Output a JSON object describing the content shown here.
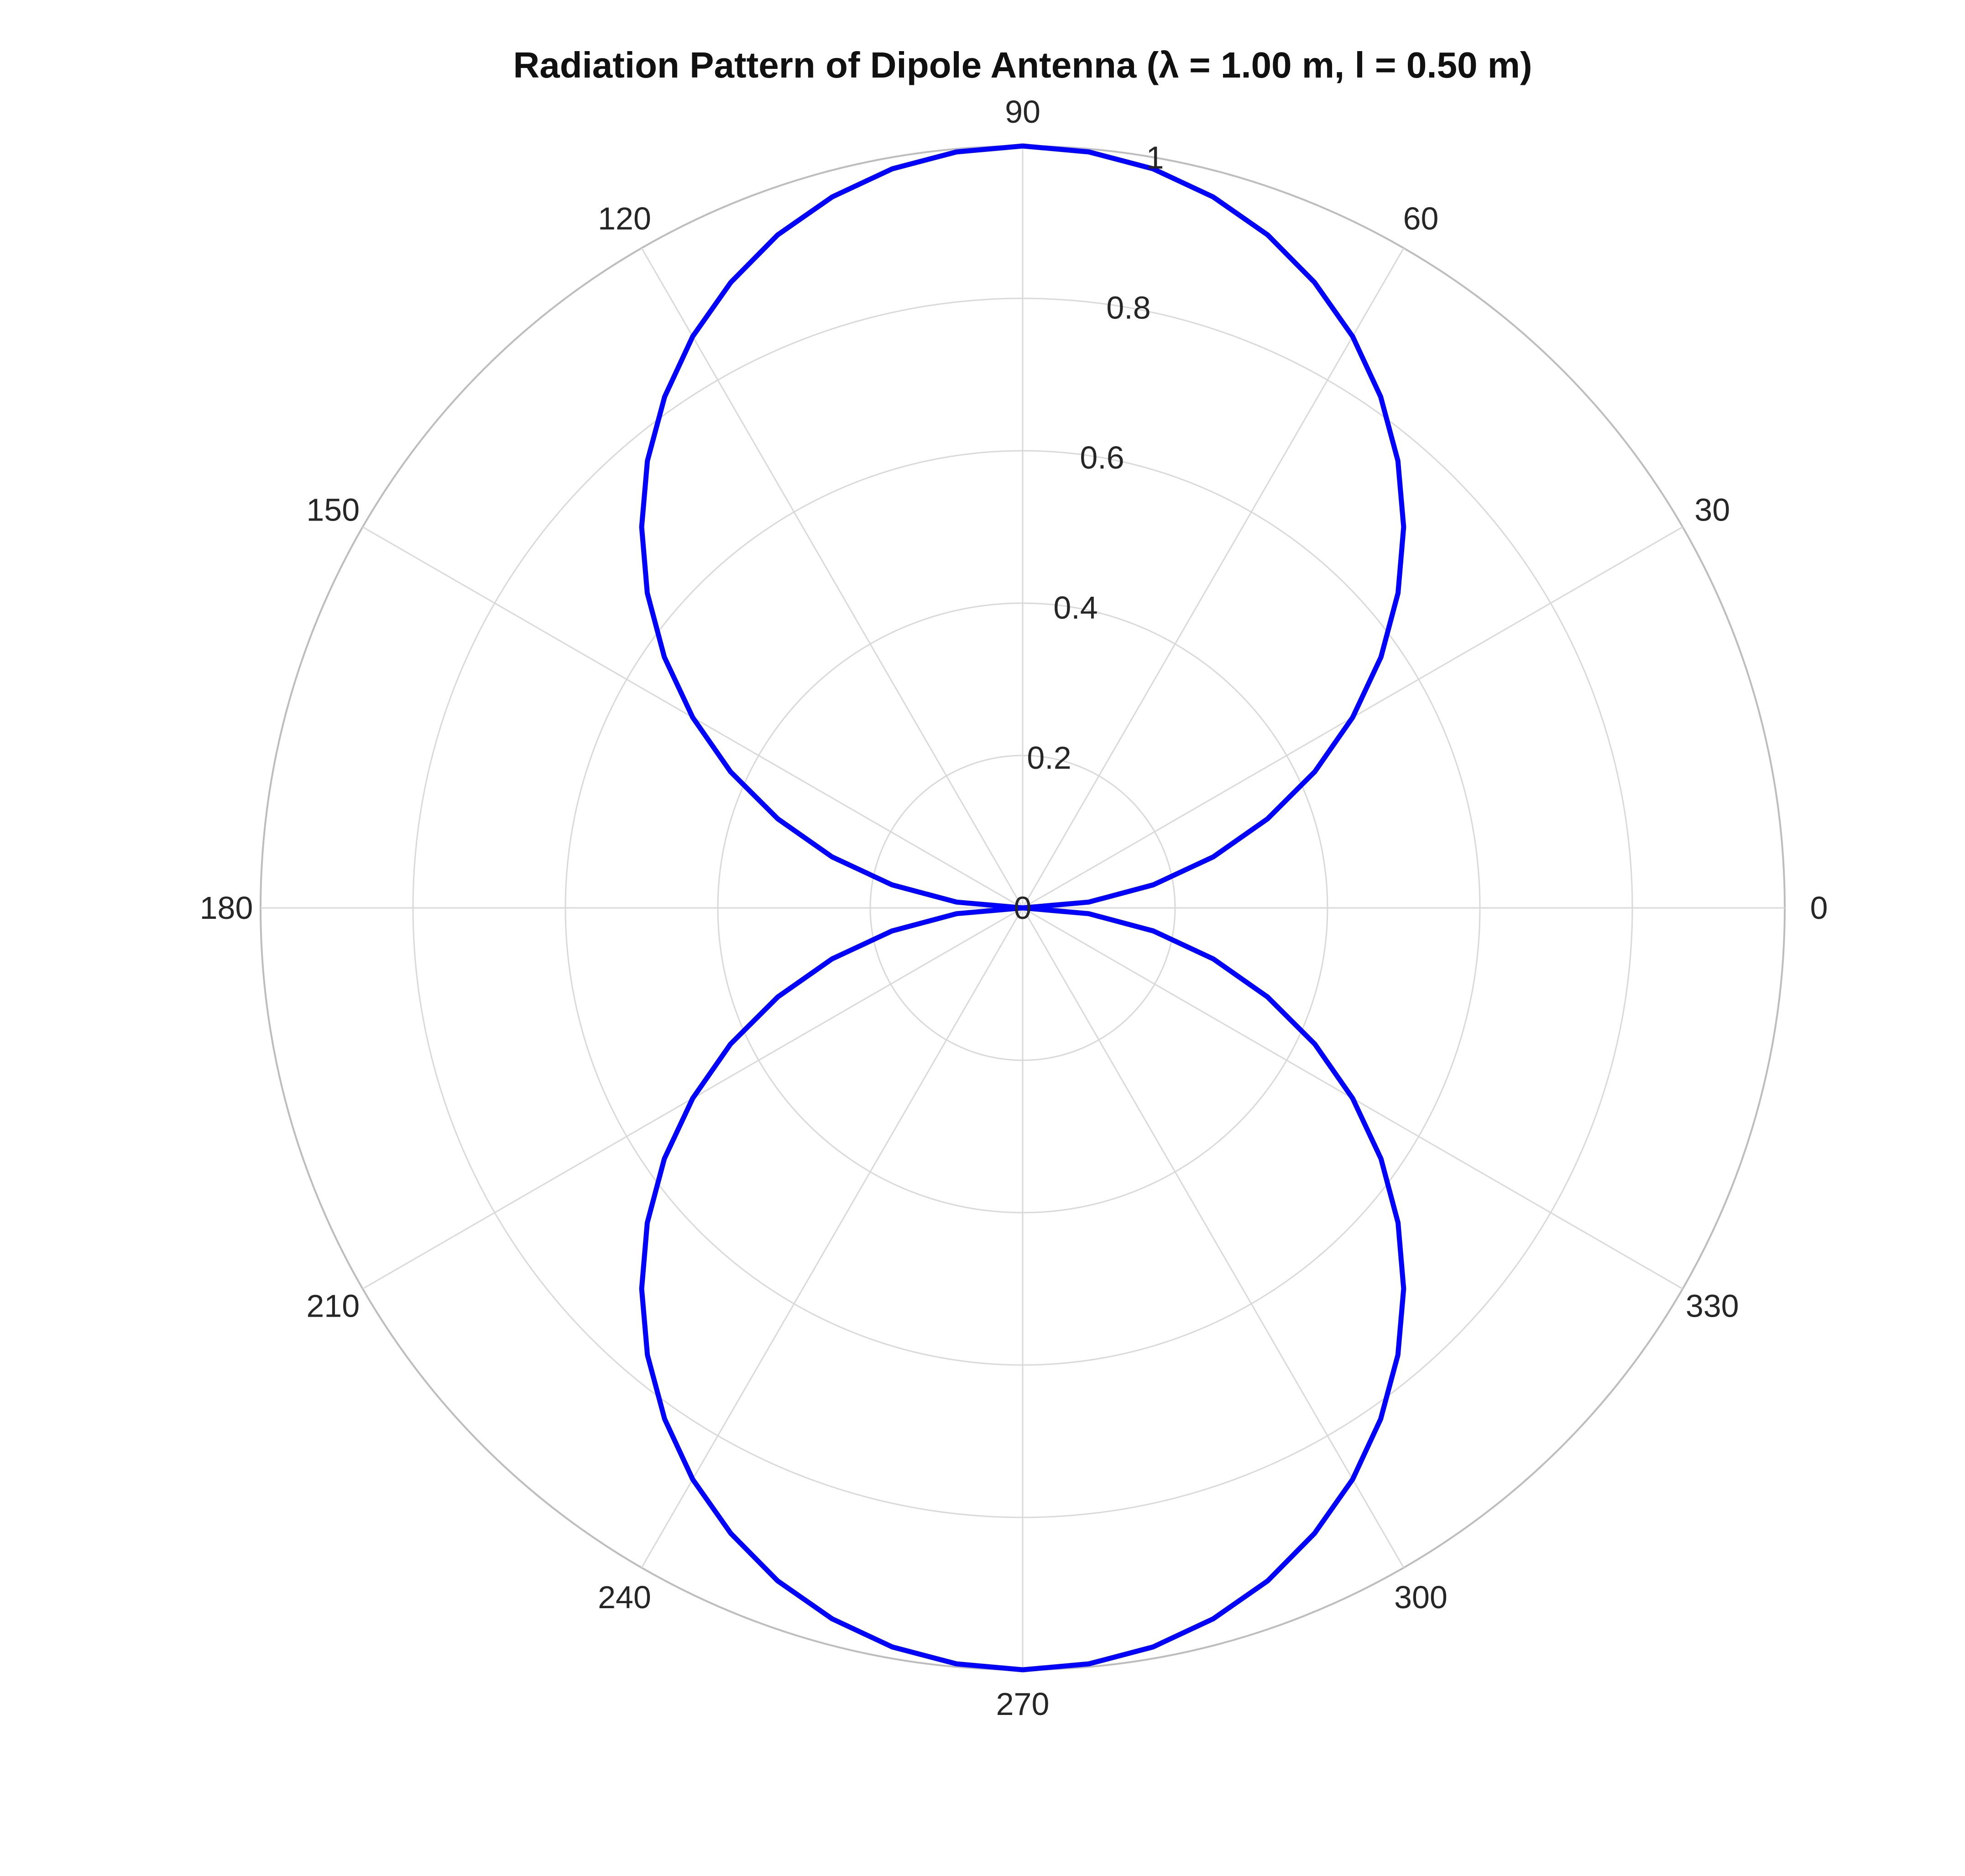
{
  "chart_data": {
    "type": "line",
    "projection": "polar",
    "title": "Radiation Pattern of Dipole Antenna (λ = 1.00 m, l = 0.50 m)",
    "theta_unit": "degrees",
    "theta_ticks": [
      0,
      30,
      60,
      90,
      120,
      150,
      180,
      210,
      240,
      270,
      300,
      330
    ],
    "theta_tick_labels": [
      "0",
      "30",
      "60",
      "90",
      "120",
      "150",
      "180",
      "210",
      "240",
      "270",
      "300",
      "330"
    ],
    "r_lim": [
      0,
      1
    ],
    "r_ticks": [
      0,
      0.2,
      0.4,
      0.6,
      0.8,
      1
    ],
    "r_tick_labels": [
      "0",
      "0.2",
      "0.4",
      "0.6",
      "0.8",
      "1"
    ],
    "r_label_angle_deg": 80,
    "grid": true,
    "legend": "none",
    "series": [
      {
        "theta_deg": [
          0,
          5,
          10,
          15,
          20,
          25,
          30,
          35,
          40,
          45,
          50,
          55,
          60,
          65,
          70,
          75,
          80,
          85,
          90,
          95,
          100,
          105,
          110,
          115,
          120,
          125,
          130,
          135,
          140,
          145,
          150,
          155,
          160,
          165,
          170,
          175,
          180,
          185,
          190,
          195,
          200,
          205,
          210,
          215,
          220,
          225,
          230,
          235,
          240,
          245,
          250,
          255,
          260,
          265,
          270,
          275,
          280,
          285,
          290,
          295,
          300,
          305,
          310,
          315,
          320,
          325,
          330,
          335,
          340,
          345,
          350,
          355,
          360
        ],
        "r": [
          0,
          0.087,
          0.174,
          0.259,
          0.342,
          0.423,
          0.5,
          0.574,
          0.643,
          0.707,
          0.766,
          0.819,
          0.866,
          0.906,
          0.94,
          0.966,
          0.985,
          0.996,
          1,
          0.996,
          0.985,
          0.966,
          0.94,
          0.906,
          0.866,
          0.819,
          0.766,
          0.707,
          0.643,
          0.574,
          0.5,
          0.423,
          0.342,
          0.259,
          0.174,
          0.087,
          0,
          0.087,
          0.174,
          0.259,
          0.342,
          0.423,
          0.5,
          0.574,
          0.643,
          0.707,
          0.766,
          0.819,
          0.866,
          0.906,
          0.94,
          0.966,
          0.985,
          0.996,
          1,
          0.996,
          0.985,
          0.966,
          0.94,
          0.906,
          0.866,
          0.819,
          0.766,
          0.707,
          0.643,
          0.574,
          0.5,
          0.423,
          0.342,
          0.259,
          0.174,
          0.087,
          0
        ],
        "color": "#0000ff"
      }
    ],
    "colors": {
      "grid": "#d9d9d9",
      "outer_ring": "#bdbdbd",
      "text": "#262626",
      "title": "#111111"
    }
  }
}
